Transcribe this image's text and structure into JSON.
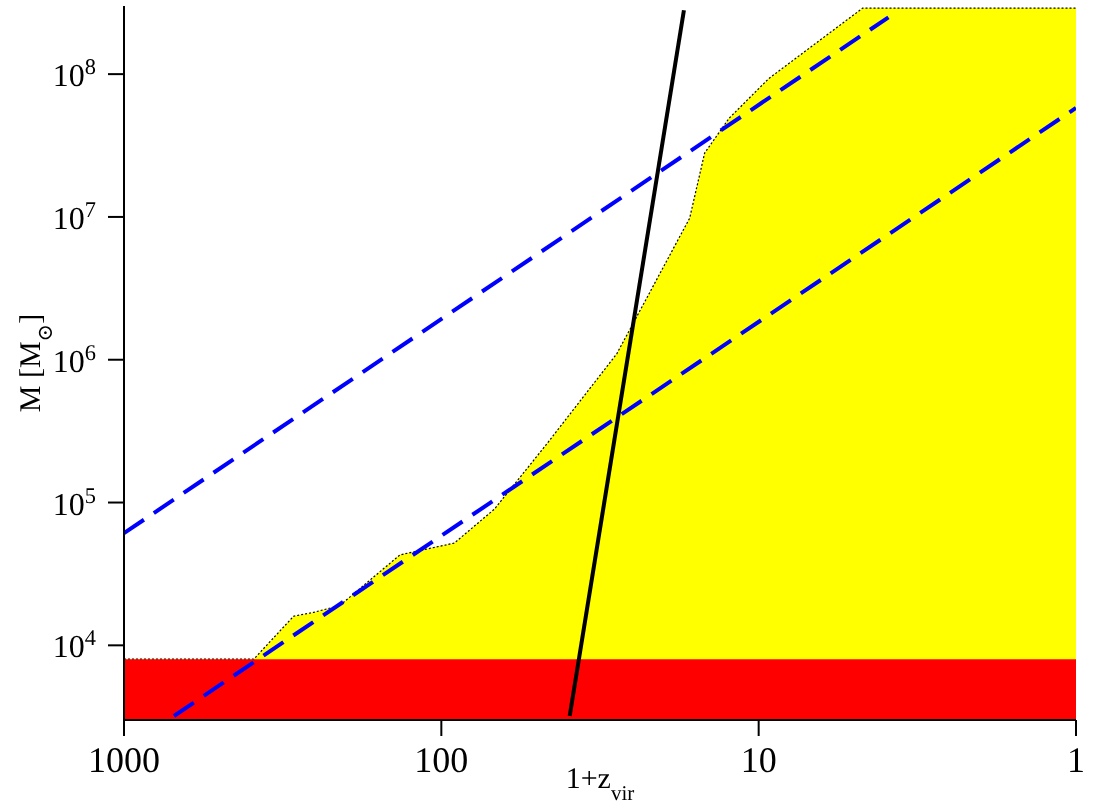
{
  "chart_data": {
    "type": "area",
    "xlabel": "1+z$_{vir}$",
    "ylabel": "M [M$_{⊙}$]",
    "log": "xy",
    "xlim": [
      1000,
      1
    ],
    "xticks": [
      1000,
      100,
      10,
      1
    ],
    "ylim": [
      3000,
      300000000
    ],
    "yticks": [
      {
        "value": 10000,
        "label": "10$^{4}$"
      },
      {
        "value": 100000,
        "label": "10$^{5}$"
      },
      {
        "value": 1000000,
        "label": "10$^{6}$"
      },
      {
        "value": 10000000,
        "label": "10$^{7}$"
      },
      {
        "value": 100000000,
        "label": "10$^{8}$"
      }
    ],
    "bands": [
      {
        "axis": "y",
        "from": 3000,
        "to": 8000,
        "color": "#ff0000"
      }
    ],
    "series": [
      {
        "color": "#ffff00",
        "x": [
          1000,
          390,
          292,
          253,
          209,
          135,
          91,
          68,
          47,
          28,
          16.5,
          14.8,
          12.4,
          9.3,
          4.7,
          1
        ],
        "values": [
          8000,
          8000,
          16000,
          17000,
          19000,
          43000,
          52000,
          90000,
          250000,
          1100000,
          9800000,
          28000000,
          49000000,
          93000000,
          290000000,
          290000000
        ]
      },
      {
        "type": "line",
        "color": "#000000",
        "line_style": "solid",
        "x": [
          39.4,
          17.2
        ],
        "values": [
          3200,
          280000000
        ]
      },
      {
        "type": "line",
        "color": "#0000ff",
        "line_style": "dashed",
        "x": [
          1000,
          3.9
        ],
        "values": [
          61000,
          250000000
        ]
      },
      {
        "type": "line",
        "color": "#0000ff",
        "line_style": "dashed",
        "x": [
          696,
          1
        ],
        "values": [
          3200,
          58000000
        ]
      }
    ]
  }
}
